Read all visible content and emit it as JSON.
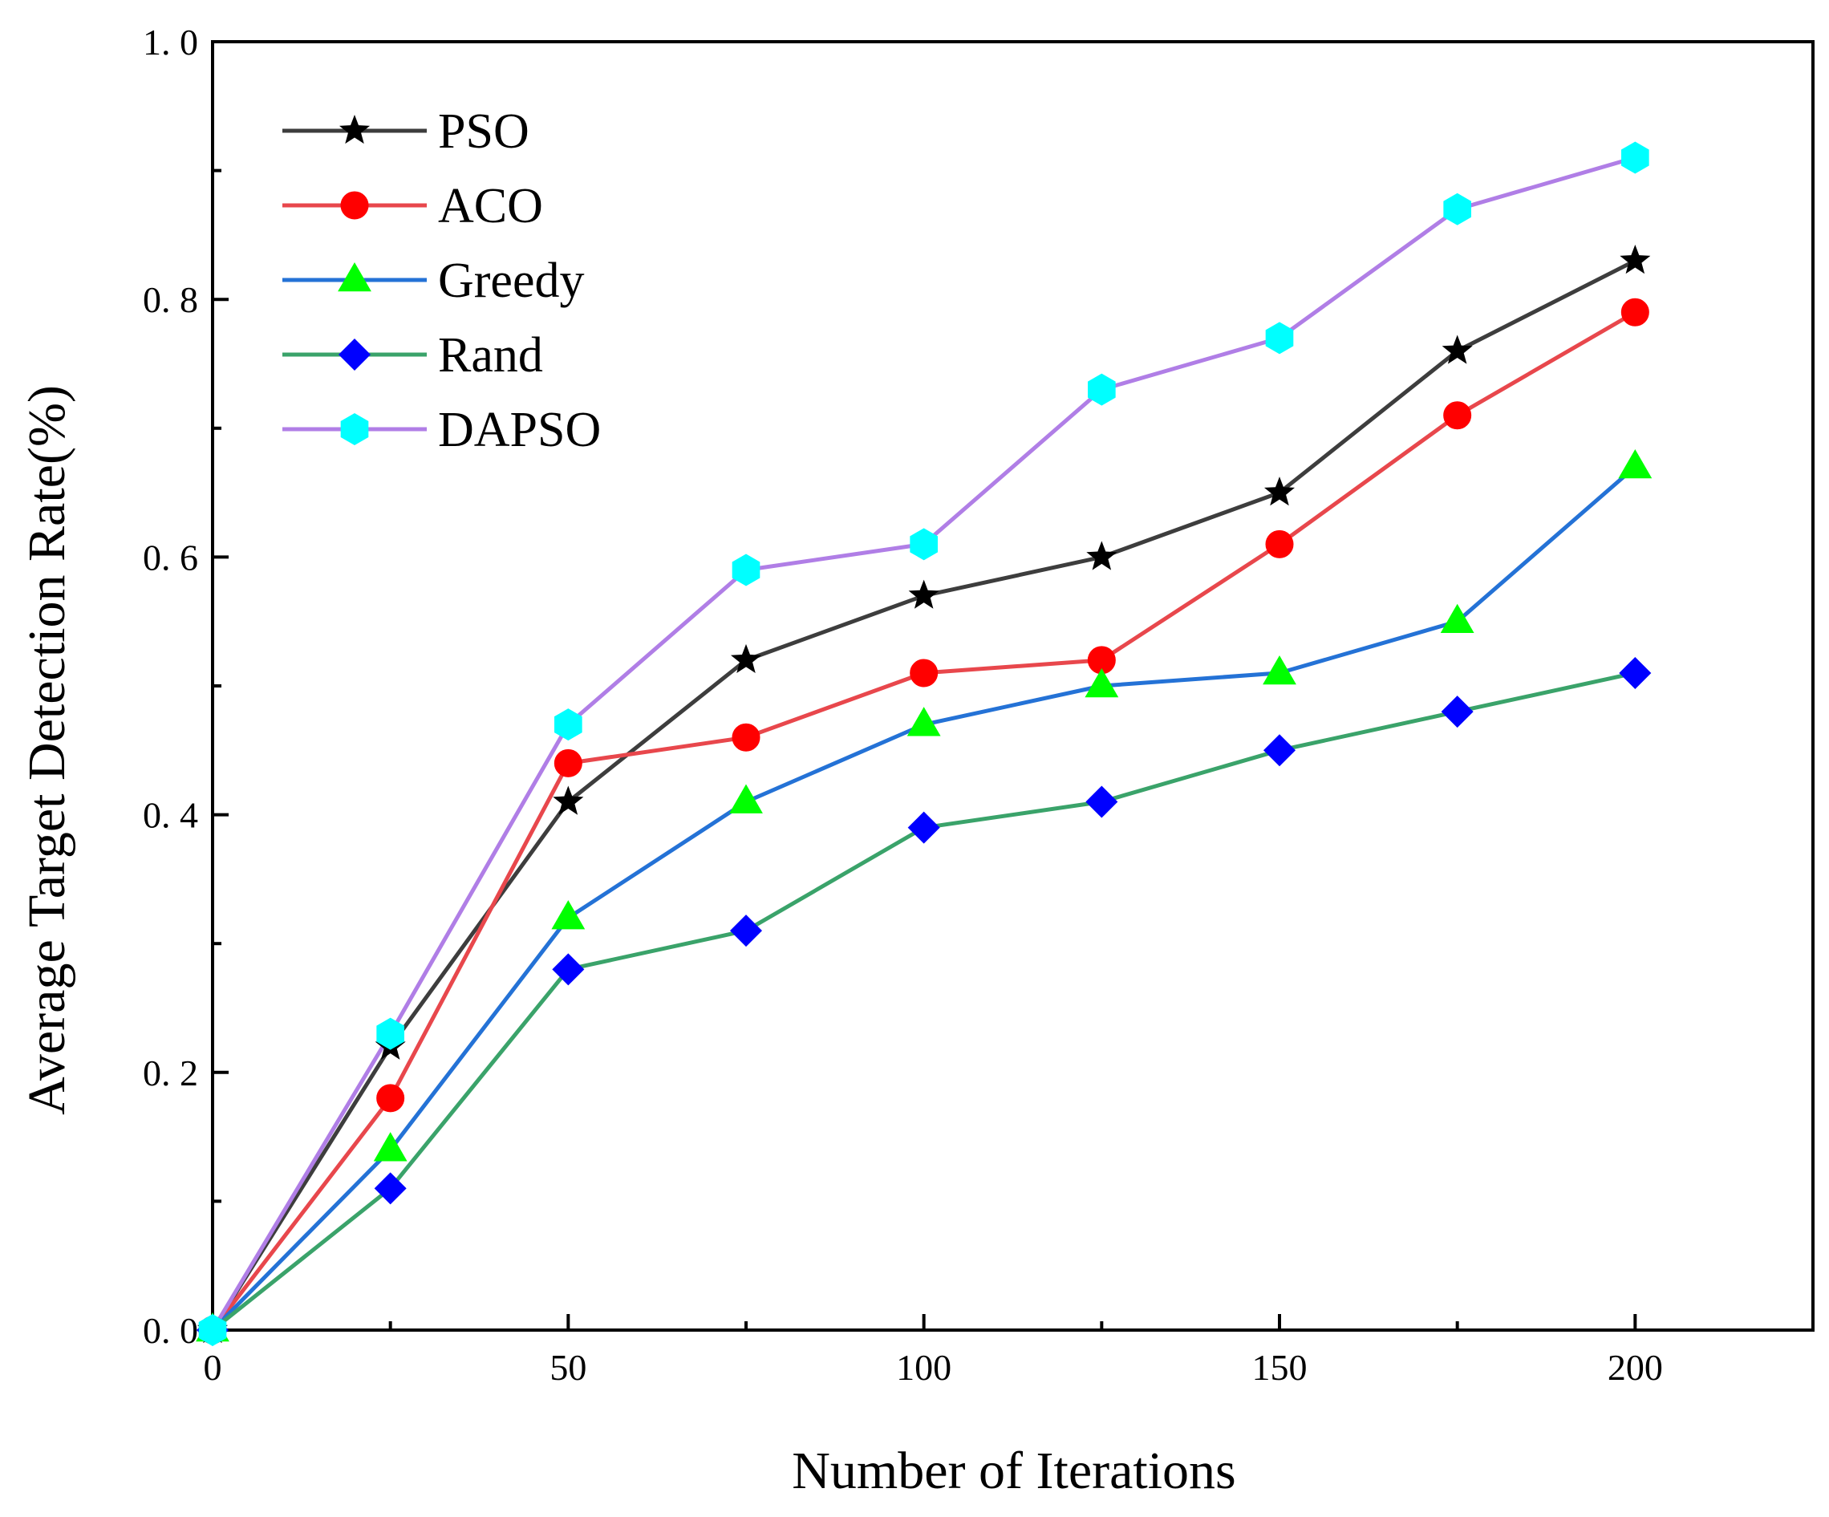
{
  "chart_data": {
    "type": "line",
    "title": "",
    "xlabel": "Number of Iterations",
    "ylabel": "Average Target Detection Rate(%)",
    "xlim": [
      0,
      225
    ],
    "ylim": [
      0,
      1.0
    ],
    "x_ticks": [
      0,
      50,
      100,
      150,
      200
    ],
    "x_tick_labels": [
      "0",
      "50",
      "100",
      "150",
      "200"
    ],
    "y_ticks": [
      0,
      0.2,
      0.4,
      0.6,
      0.8,
      1.0
    ],
    "y_tick_labels": [
      "0. 0",
      "0. 2",
      "0. 4",
      "0. 6",
      "0. 8",
      "1. 0"
    ],
    "legend_position": "top-left",
    "x": [
      0,
      25,
      50,
      75,
      100,
      125,
      150,
      175,
      200
    ],
    "series": [
      {
        "name": "PSO",
        "line_color": "#3d3d3d",
        "marker": "star",
        "marker_color": "#000000",
        "values": [
          0,
          0.22,
          0.41,
          0.52,
          0.57,
          0.6,
          0.65,
          0.76,
          0.83
        ]
      },
      {
        "name": "ACO",
        "line_color": "#e8474c",
        "marker": "circle",
        "marker_color": "#ff0000",
        "values": [
          0,
          0.18,
          0.44,
          0.46,
          0.51,
          0.52,
          0.61,
          0.71,
          0.79
        ]
      },
      {
        "name": "Greedy",
        "line_color": "#2472d6",
        "marker": "triangle",
        "marker_color": "#00ff00",
        "values": [
          0,
          0.14,
          0.32,
          0.41,
          0.47,
          0.5,
          0.51,
          0.55,
          0.67
        ]
      },
      {
        "name": "Rand",
        "line_color": "#3aa36a",
        "marker": "diamond",
        "marker_color": "#0000ff",
        "values": [
          0,
          0.11,
          0.28,
          0.31,
          0.39,
          0.41,
          0.45,
          0.48,
          0.51
        ]
      },
      {
        "name": "DAPSO",
        "line_color": "#b07ee6",
        "marker": "hexagon",
        "marker_color": "#00ffff",
        "values": [
          0,
          0.23,
          0.47,
          0.59,
          0.61,
          0.73,
          0.77,
          0.87,
          0.91
        ]
      }
    ]
  }
}
